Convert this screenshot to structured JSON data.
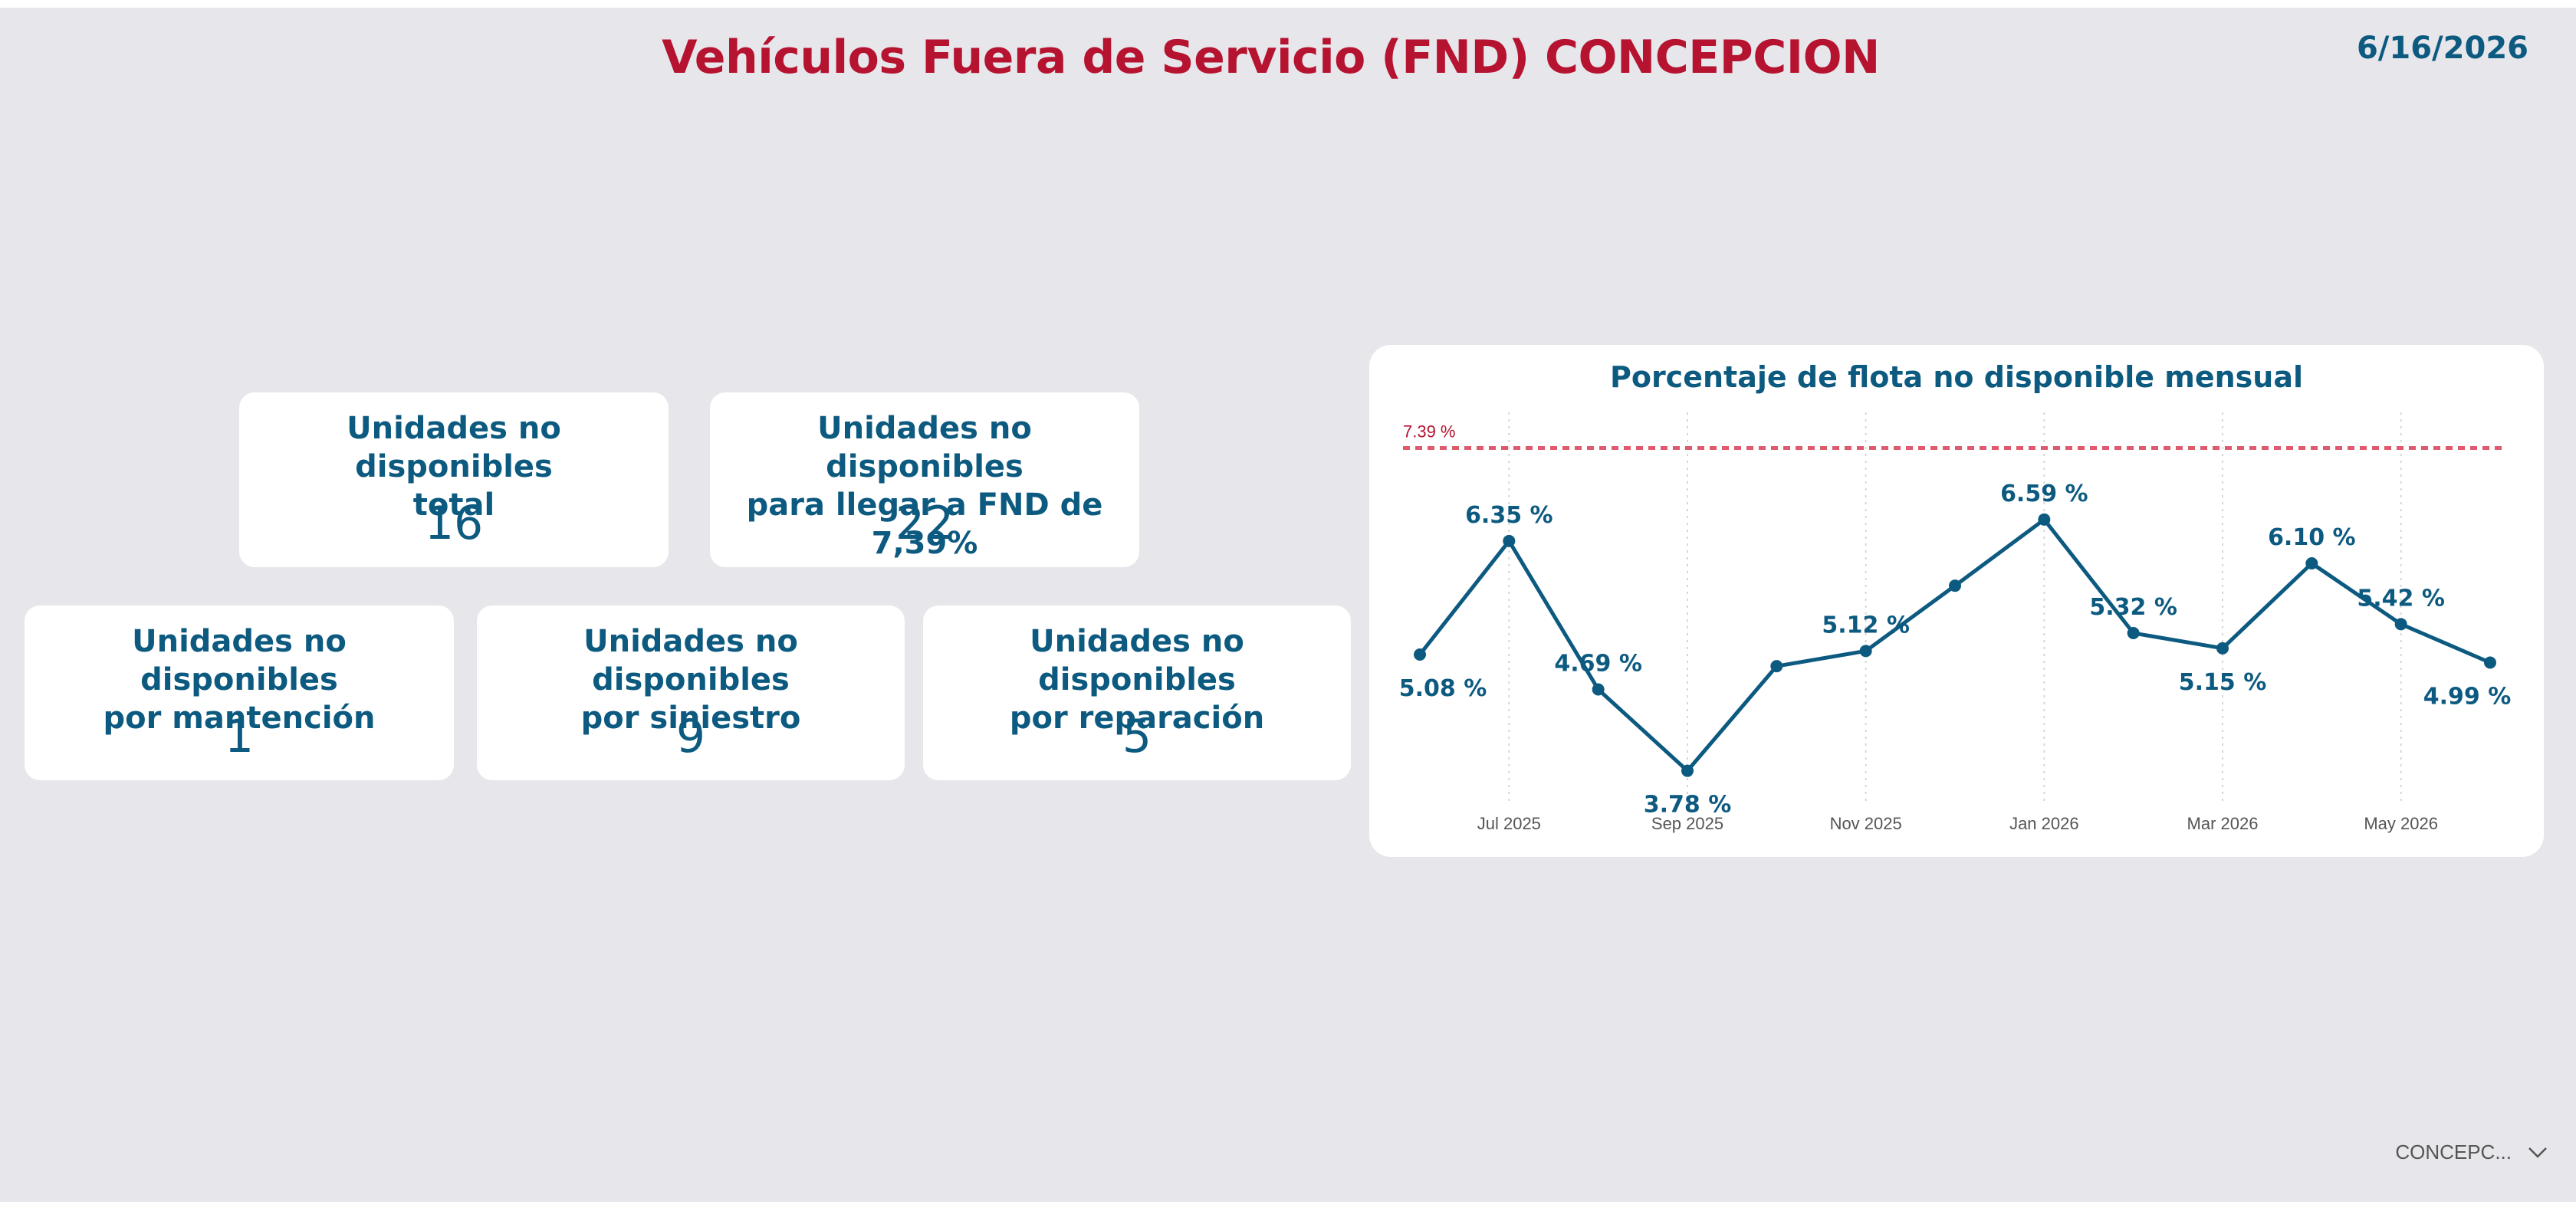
{
  "header": {
    "title": "Vehículos Fuera de Servicio (FND) CONCEPCION",
    "date": "6/16/2026"
  },
  "cards": {
    "total": {
      "label_1": "Unidades no disponibles",
      "label_2": "total",
      "value": "16"
    },
    "target": {
      "label_1": "Unidades no disponibles",
      "label_2": "para llegar a FND de 7,39%",
      "value": "22"
    },
    "maintenance": {
      "label_1": "Unidades no disponibles",
      "label_2": "por mantención",
      "value": "1"
    },
    "accident": {
      "label_1": "Unidades no disponibles",
      "label_2": "por siniestro",
      "value": "9"
    },
    "repair": {
      "label_1": "Unidades no disponibles",
      "label_2": "por reparación",
      "value": "5"
    }
  },
  "chart_data": {
    "type": "line",
    "title": "Porcentaje de flota no disponible mensual",
    "x": [
      "Jun 2025",
      "Jul 2025",
      "Aug 2025",
      "Sep 2025",
      "Oct 2025",
      "Nov 2025",
      "Dec 2025",
      "Jan 2026",
      "Feb 2026",
      "Mar 2026",
      "Apr 2026",
      "May 2026",
      "Jun 2026"
    ],
    "values": [
      5.08,
      6.35,
      4.69,
      3.78,
      4.95,
      5.12,
      5.85,
      6.59,
      5.32,
      5.15,
      6.1,
      5.42,
      4.99
    ],
    "data_labels": [
      "5.08 %",
      "6.35 %",
      "4.69 %",
      "3.78 %",
      "",
      "5.12 %",
      "",
      "6.59 %",
      "5.32 %",
      "5.15 %",
      "6.10 %",
      "5.42 %",
      "4.99 %"
    ],
    "x_ticks": [
      "Jul 2025",
      "Sep 2025",
      "Nov 2025",
      "Jan 2026",
      "Mar 2026",
      "May 2026"
    ],
    "reference_line": {
      "value": 7.39,
      "label": "7.39 %",
      "color": "#e05a6d"
    },
    "ylim": [
      3.4,
      7.6
    ],
    "grid": "vertical dotted",
    "line_color": "#0d5a80"
  },
  "slicer": {
    "value": "CONCEPC..."
  },
  "icons": {
    "slicer_toggle": "chevron-down-icon"
  }
}
